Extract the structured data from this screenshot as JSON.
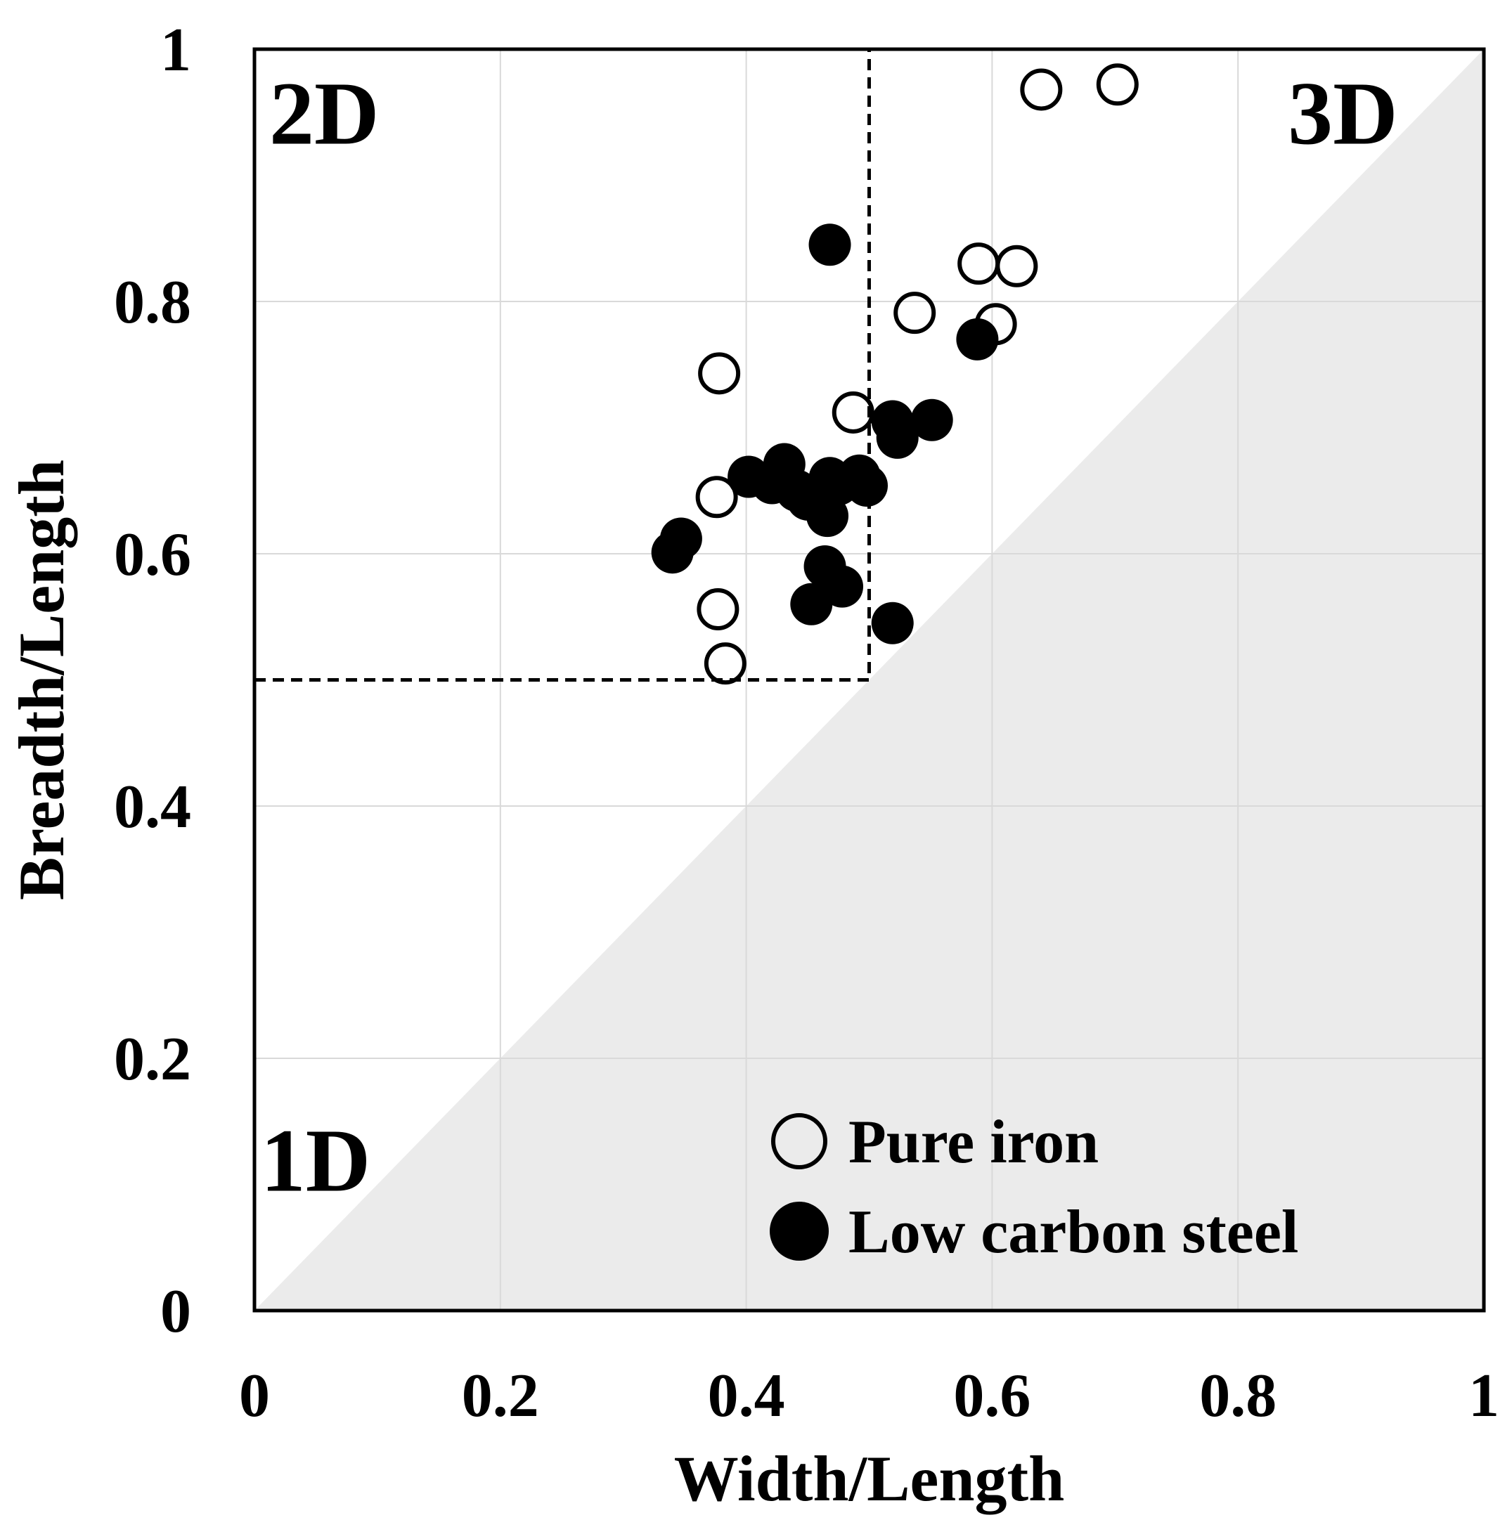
{
  "chart_data": {
    "type": "scatter",
    "title": "",
    "xlabel": "Width/Length",
    "ylabel": "Breadth/Length",
    "xlim": [
      0,
      1
    ],
    "ylim": [
      0,
      1
    ],
    "x_ticks": [
      "0",
      "0.2",
      "0.4",
      "0.6",
      "0.8",
      "1"
    ],
    "y_ticks": [
      "0",
      "0.2",
      "0.4",
      "0.6",
      "0.8",
      "1"
    ],
    "grid": true,
    "regions": {
      "shaded": "below the diagonal y = x",
      "labels": [
        "1D",
        "2D",
        "3D"
      ],
      "boundary_x": 0.5,
      "boundary_y": 0.5
    },
    "legend_position": "bottom-right",
    "series": [
      {
        "name": "Pure iron",
        "marker": "open-circle",
        "points": [
          [
            0.64,
            0.968
          ],
          [
            0.702,
            0.972
          ],
          [
            0.589,
            0.83
          ],
          [
            0.62,
            0.828
          ],
          [
            0.537,
            0.791
          ],
          [
            0.603,
            0.782
          ],
          [
            0.378,
            0.743
          ],
          [
            0.487,
            0.712
          ],
          [
            0.376,
            0.645
          ],
          [
            0.377,
            0.556
          ],
          [
            0.383,
            0.513
          ]
        ]
      },
      {
        "name": "Low carbon steel",
        "marker": "filled-circle",
        "points": [
          [
            0.468,
            0.845
          ],
          [
            0.588,
            0.77
          ],
          [
            0.519,
            0.705
          ],
          [
            0.551,
            0.706
          ],
          [
            0.523,
            0.692
          ],
          [
            0.431,
            0.671
          ],
          [
            0.402,
            0.661
          ],
          [
            0.421,
            0.656
          ],
          [
            0.441,
            0.65
          ],
          [
            0.45,
            0.643
          ],
          [
            0.468,
            0.66
          ],
          [
            0.475,
            0.655
          ],
          [
            0.492,
            0.662
          ],
          [
            0.498,
            0.654
          ],
          [
            0.466,
            0.63
          ],
          [
            0.347,
            0.612
          ],
          [
            0.34,
            0.601
          ],
          [
            0.464,
            0.59
          ],
          [
            0.478,
            0.574
          ],
          [
            0.453,
            0.56
          ],
          [
            0.519,
            0.545
          ]
        ]
      }
    ]
  },
  "colors": {
    "shade": "#ebebeb",
    "grid": "#d9d9d9",
    "ink": "#000000"
  }
}
